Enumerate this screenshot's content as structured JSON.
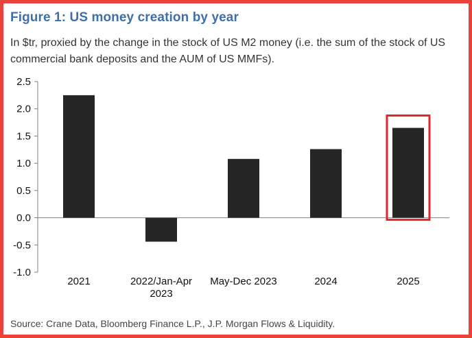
{
  "title": "Figure 1: US money creation by year",
  "subtitle": "In $tr, proxied by the change in the stock of US M2 money (i.e. the sum of the stock of US commercial bank deposits and the AUM of US MMFs).",
  "source": "Source: Crane Data, Bloomberg Finance L.P., J.P. Morgan Flows & Liquidity.",
  "colors": {
    "bar": "#262626",
    "highlight": "#e0262b",
    "border": "#e8423a",
    "title": "#3f6fa8",
    "axis": "#7f7f7f"
  },
  "chart_data": {
    "type": "bar",
    "title": "Figure 1: US money creation by year",
    "subtitle": "In $tr, proxied by the change in the stock of US M2 money (i.e. the sum of the stock of US commercial bank deposits and the AUM of US MMFs).",
    "categories": [
      [
        "2021"
      ],
      [
        "2022/Jan-Apr",
        "2023"
      ],
      [
        "May-Dec 2023"
      ],
      [
        "2024"
      ],
      [
        "2025"
      ]
    ],
    "values": [
      2.25,
      -0.44,
      1.08,
      1.26,
      1.65
    ],
    "ylim": [
      -1.0,
      2.5
    ],
    "yticks": [
      "-1.0",
      "-0.5",
      "0.0",
      "0.5",
      "1.0",
      "1.5",
      "2.0",
      "2.5"
    ],
    "ytick_values": [
      -1.0,
      -0.5,
      0.0,
      0.5,
      1.0,
      1.5,
      2.0,
      2.5
    ],
    "highlighted_category": "2025",
    "grid": false,
    "legend": "none"
  }
}
